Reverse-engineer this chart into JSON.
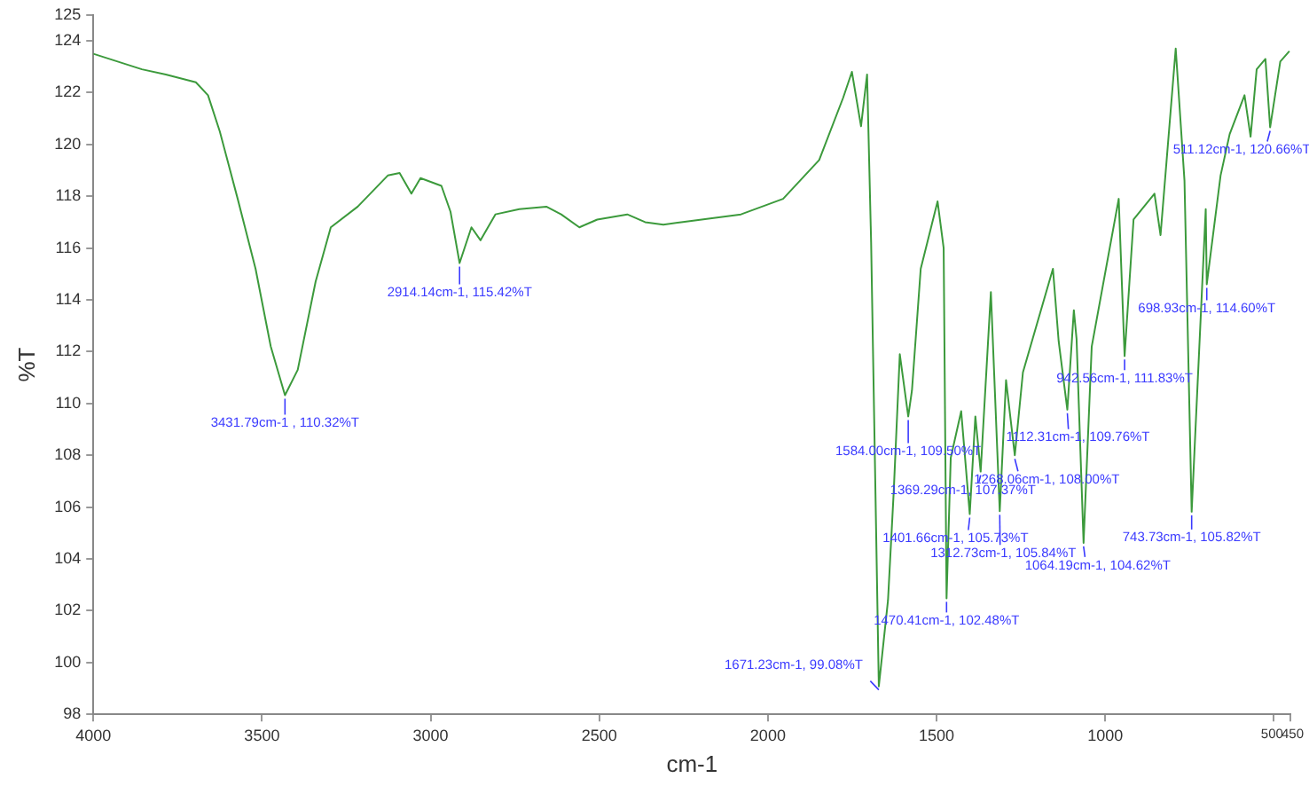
{
  "chart_data": {
    "type": "line",
    "xlabel": "cm-1",
    "ylabel": "%T",
    "grid": false,
    "legend": false,
    "marker": "none",
    "line_style": "solid",
    "xlim": [
      4000,
      450
    ],
    "xticks": [
      4000,
      3500,
      3000,
      2500,
      2000,
      1500,
      1000,
      500,
      450
    ],
    "ylim": [
      98,
      125
    ],
    "yticks": [
      98,
      100,
      102,
      104,
      106,
      108,
      110,
      112,
      114,
      116,
      118,
      120,
      122,
      124,
      125
    ],
    "series": [
      {
        "color": "#3c9a3c",
        "x": [
          4000,
          3856,
          3785,
          3696,
          3660,
          3625,
          3572,
          3519,
          3474,
          3431.79,
          3394,
          3341,
          3296,
          3216,
          3127,
          3092,
          3057,
          3030,
          2968,
          2941,
          2914.14,
          2879,
          2852,
          2808,
          2737,
          2657,
          2613,
          2559,
          2506,
          2417,
          2364,
          2310,
          2257,
          2080,
          1955,
          1848,
          1777,
          1751,
          1724,
          1706,
          1694,
          1671.23,
          1644,
          1627,
          1609,
          1584,
          1573,
          1547,
          1497,
          1479,
          1470.41,
          1458,
          1427,
          1401.66,
          1385,
          1369.29,
          1339,
          1312.73,
          1294,
          1268.06,
          1244,
          1155,
          1138,
          1112.31,
          1093,
          1085,
          1064.19,
          1040,
          960,
          942.56,
          916,
          854,
          836,
          791,
          765,
          743.73,
          702,
          698.93,
          658,
          631,
          587,
          569,
          551,
          525,
          511.12,
          481,
          454
        ],
        "values": [
          123.5,
          122.9,
          122.7,
          122.4,
          121.9,
          120.5,
          117.9,
          115.2,
          112.2,
          110.32,
          111.3,
          114.7,
          116.8,
          117.6,
          118.8,
          118.9,
          118.1,
          118.7,
          118.4,
          117.4,
          115.42,
          116.8,
          116.3,
          117.3,
          117.5,
          117.6,
          117.3,
          116.8,
          117.1,
          117.3,
          117,
          116.9,
          117,
          117.3,
          117.9,
          119.4,
          121.8,
          122.8,
          120.7,
          122.7,
          116.2,
          99.08,
          102.4,
          106.6,
          111.9,
          109.5,
          110.5,
          115.2,
          117.8,
          116,
          102.48,
          107.9,
          109.7,
          105.73,
          109.5,
          107.37,
          114.3,
          105.84,
          110.9,
          108,
          111.2,
          115.2,
          112.4,
          109.76,
          113.6,
          112.5,
          104.62,
          112.2,
          117.9,
          111.83,
          117.1,
          118.1,
          116.5,
          123.7,
          118.6,
          105.82,
          117.5,
          114.6,
          118.8,
          120.4,
          121.9,
          120.3,
          122.9,
          123.3,
          120.66,
          123.2,
          123.6
        ]
      }
    ],
    "annotations": [
      {
        "text": "3431.79cm-1 , 110.32%T",
        "x": 3431.79,
        "y": 110.32
      },
      {
        "text": "2914.14cm-1, 115.42%T",
        "x": 2914.14,
        "y": 115.42
      },
      {
        "text": "1671.23cm-1, 99.08%T",
        "x": 1671.23,
        "y": 99.08
      },
      {
        "text": "1584.00cm-1, 109.50%T",
        "x": 1584,
        "y": 109.5
      },
      {
        "text": "1470.41cm-1, 102.48%T",
        "x": 1470.41,
        "y": 102.48
      },
      {
        "text": "1401.66cm-1, 105.73%T",
        "x": 1401.66,
        "y": 105.73
      },
      {
        "text": "1369.29cm-1, 107.37%T",
        "x": 1369.29,
        "y": 107.37
      },
      {
        "text": "1312.73cm-1, 105.84%T",
        "x": 1312.73,
        "y": 105.84
      },
      {
        "text": "1268.06cm-1, 108.00%T",
        "x": 1268.06,
        "y": 108
      },
      {
        "text": "1112.31cm-1, 109.76%T",
        "x": 1112.31,
        "y": 109.76
      },
      {
        "text": "1064.19cm-1, 104.62%T",
        "x": 1064.19,
        "y": 104.62
      },
      {
        "text": "942.56cm-1, 111.83%T",
        "x": 942.56,
        "y": 111.83
      },
      {
        "text": "743.73cm-1, 105.82%T",
        "x": 743.73,
        "y": 105.82
      },
      {
        "text": "698.93cm-1, 114.60%T",
        "x": 698.93,
        "y": 114.6
      },
      {
        "text": "511.12cm-1, 120.66%T",
        "x": 511.12,
        "y": 120.66
      }
    ]
  }
}
